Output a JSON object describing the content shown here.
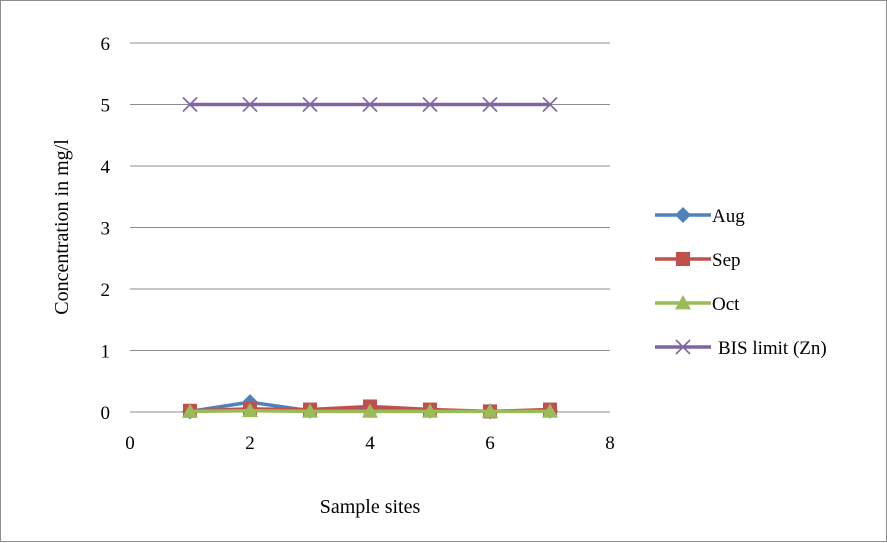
{
  "chart_data": {
    "type": "line",
    "title": "",
    "xlabel": "Sample sites",
    "ylabel": "Concentration in mg/l",
    "xlim": [
      0,
      8
    ],
    "ylim": [
      0,
      6
    ],
    "x_ticks": [
      0,
      2,
      4,
      6,
      8
    ],
    "y_ticks": [
      0,
      1,
      2,
      3,
      4,
      5,
      6
    ],
    "grid": "horizontal",
    "legend_position": "right",
    "x": [
      1,
      2,
      3,
      4,
      5,
      6,
      7
    ],
    "series": [
      {
        "name": "Aug",
        "color": "#4f81bd",
        "marker": "diamond",
        "values": [
          0.01,
          0.16,
          0.02,
          0.03,
          0.02,
          0.01,
          0.02
        ]
      },
      {
        "name": "Sep",
        "color": "#c0504d",
        "marker": "square",
        "values": [
          0.02,
          0.05,
          0.04,
          0.09,
          0.04,
          0.01,
          0.04
        ]
      },
      {
        "name": "Oct",
        "color": "#9bbb59",
        "marker": "triangle",
        "values": [
          0.01,
          0.02,
          0.01,
          0.01,
          0.01,
          0.01,
          0.01
        ]
      },
      {
        "name": "BIS limit (Zn)",
        "color": "#8064a2",
        "marker": "x",
        "values": [
          5,
          5,
          5,
          5,
          5,
          5,
          5
        ]
      }
    ]
  }
}
